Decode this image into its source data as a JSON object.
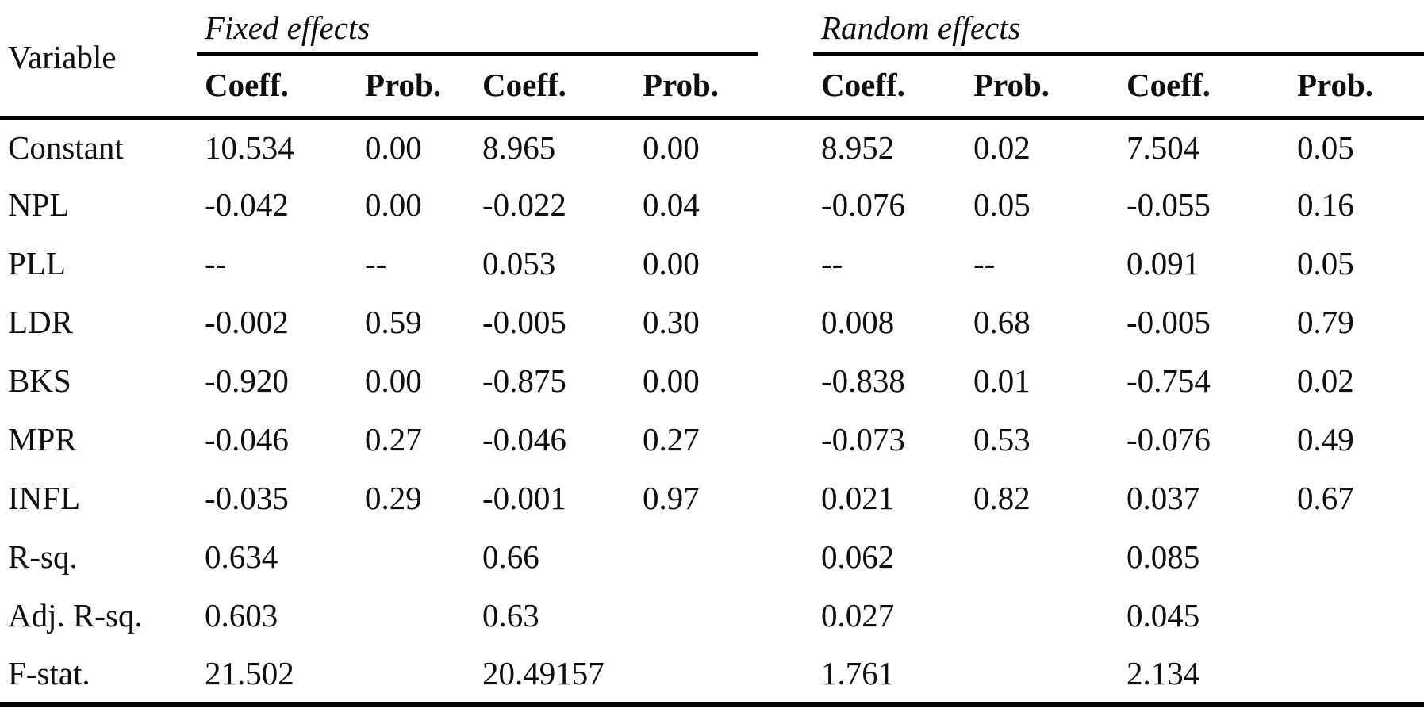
{
  "table": {
    "variable_header": "Variable",
    "groups": [
      {
        "label": "Fixed effects"
      },
      {
        "label": "Random effects"
      }
    ],
    "sub_headers": [
      "Coeff.",
      "Prob.",
      "Coeff.",
      "Prob.",
      "Coeff.",
      "Prob.",
      "Coeff.",
      "Prob."
    ],
    "rows": [
      {
        "label": "Constant",
        "cells": [
          "10.534",
          "0.00",
          "8.965",
          "0.00",
          "8.952",
          "0.02",
          "7.504",
          "0.05"
        ]
      },
      {
        "label": "NPL",
        "cells": [
          "-0.042",
          "0.00",
          "-0.022",
          "0.04",
          "-0.076",
          "0.05",
          "-0.055",
          "0.16"
        ]
      },
      {
        "label": "PLL",
        "cells": [
          "--",
          "--",
          "0.053",
          "0.00",
          "--",
          "--",
          "0.091",
          "0.05"
        ]
      },
      {
        "label": "LDR",
        "cells": [
          "-0.002",
          "0.59",
          "-0.005",
          "0.30",
          "0.008",
          "0.68",
          "-0.005",
          "0.79"
        ]
      },
      {
        "label": "BKS",
        "cells": [
          "-0.920",
          "0.00",
          "-0.875",
          "0.00",
          "-0.838",
          "0.01",
          "-0.754",
          "0.02"
        ]
      },
      {
        "label": "MPR",
        "cells": [
          "-0.046",
          "0.27",
          "-0.046",
          "0.27",
          "-0.073",
          "0.53",
          "-0.076",
          "0.49"
        ]
      },
      {
        "label": "INFL",
        "cells": [
          "-0.035",
          "0.29",
          "-0.001",
          "0.97",
          "0.021",
          "0.82",
          "0.037",
          "0.67"
        ]
      },
      {
        "label": "R-sq.",
        "cells": [
          "0.634",
          "",
          "0.66",
          "",
          "0.062",
          "",
          "0.085",
          ""
        ]
      },
      {
        "label": "Adj. R-sq.",
        "cells": [
          "0.603",
          "",
          "0.63",
          "",
          "0.027",
          "",
          "0.045",
          ""
        ]
      },
      {
        "label": "F-stat.",
        "cells": [
          "21.502",
          "",
          "20.49157",
          "",
          "1.761",
          "",
          "2.134",
          ""
        ]
      }
    ],
    "colors": {
      "text": "#0f0f0f",
      "rule": "#000000",
      "background": "#ffffff"
    }
  }
}
